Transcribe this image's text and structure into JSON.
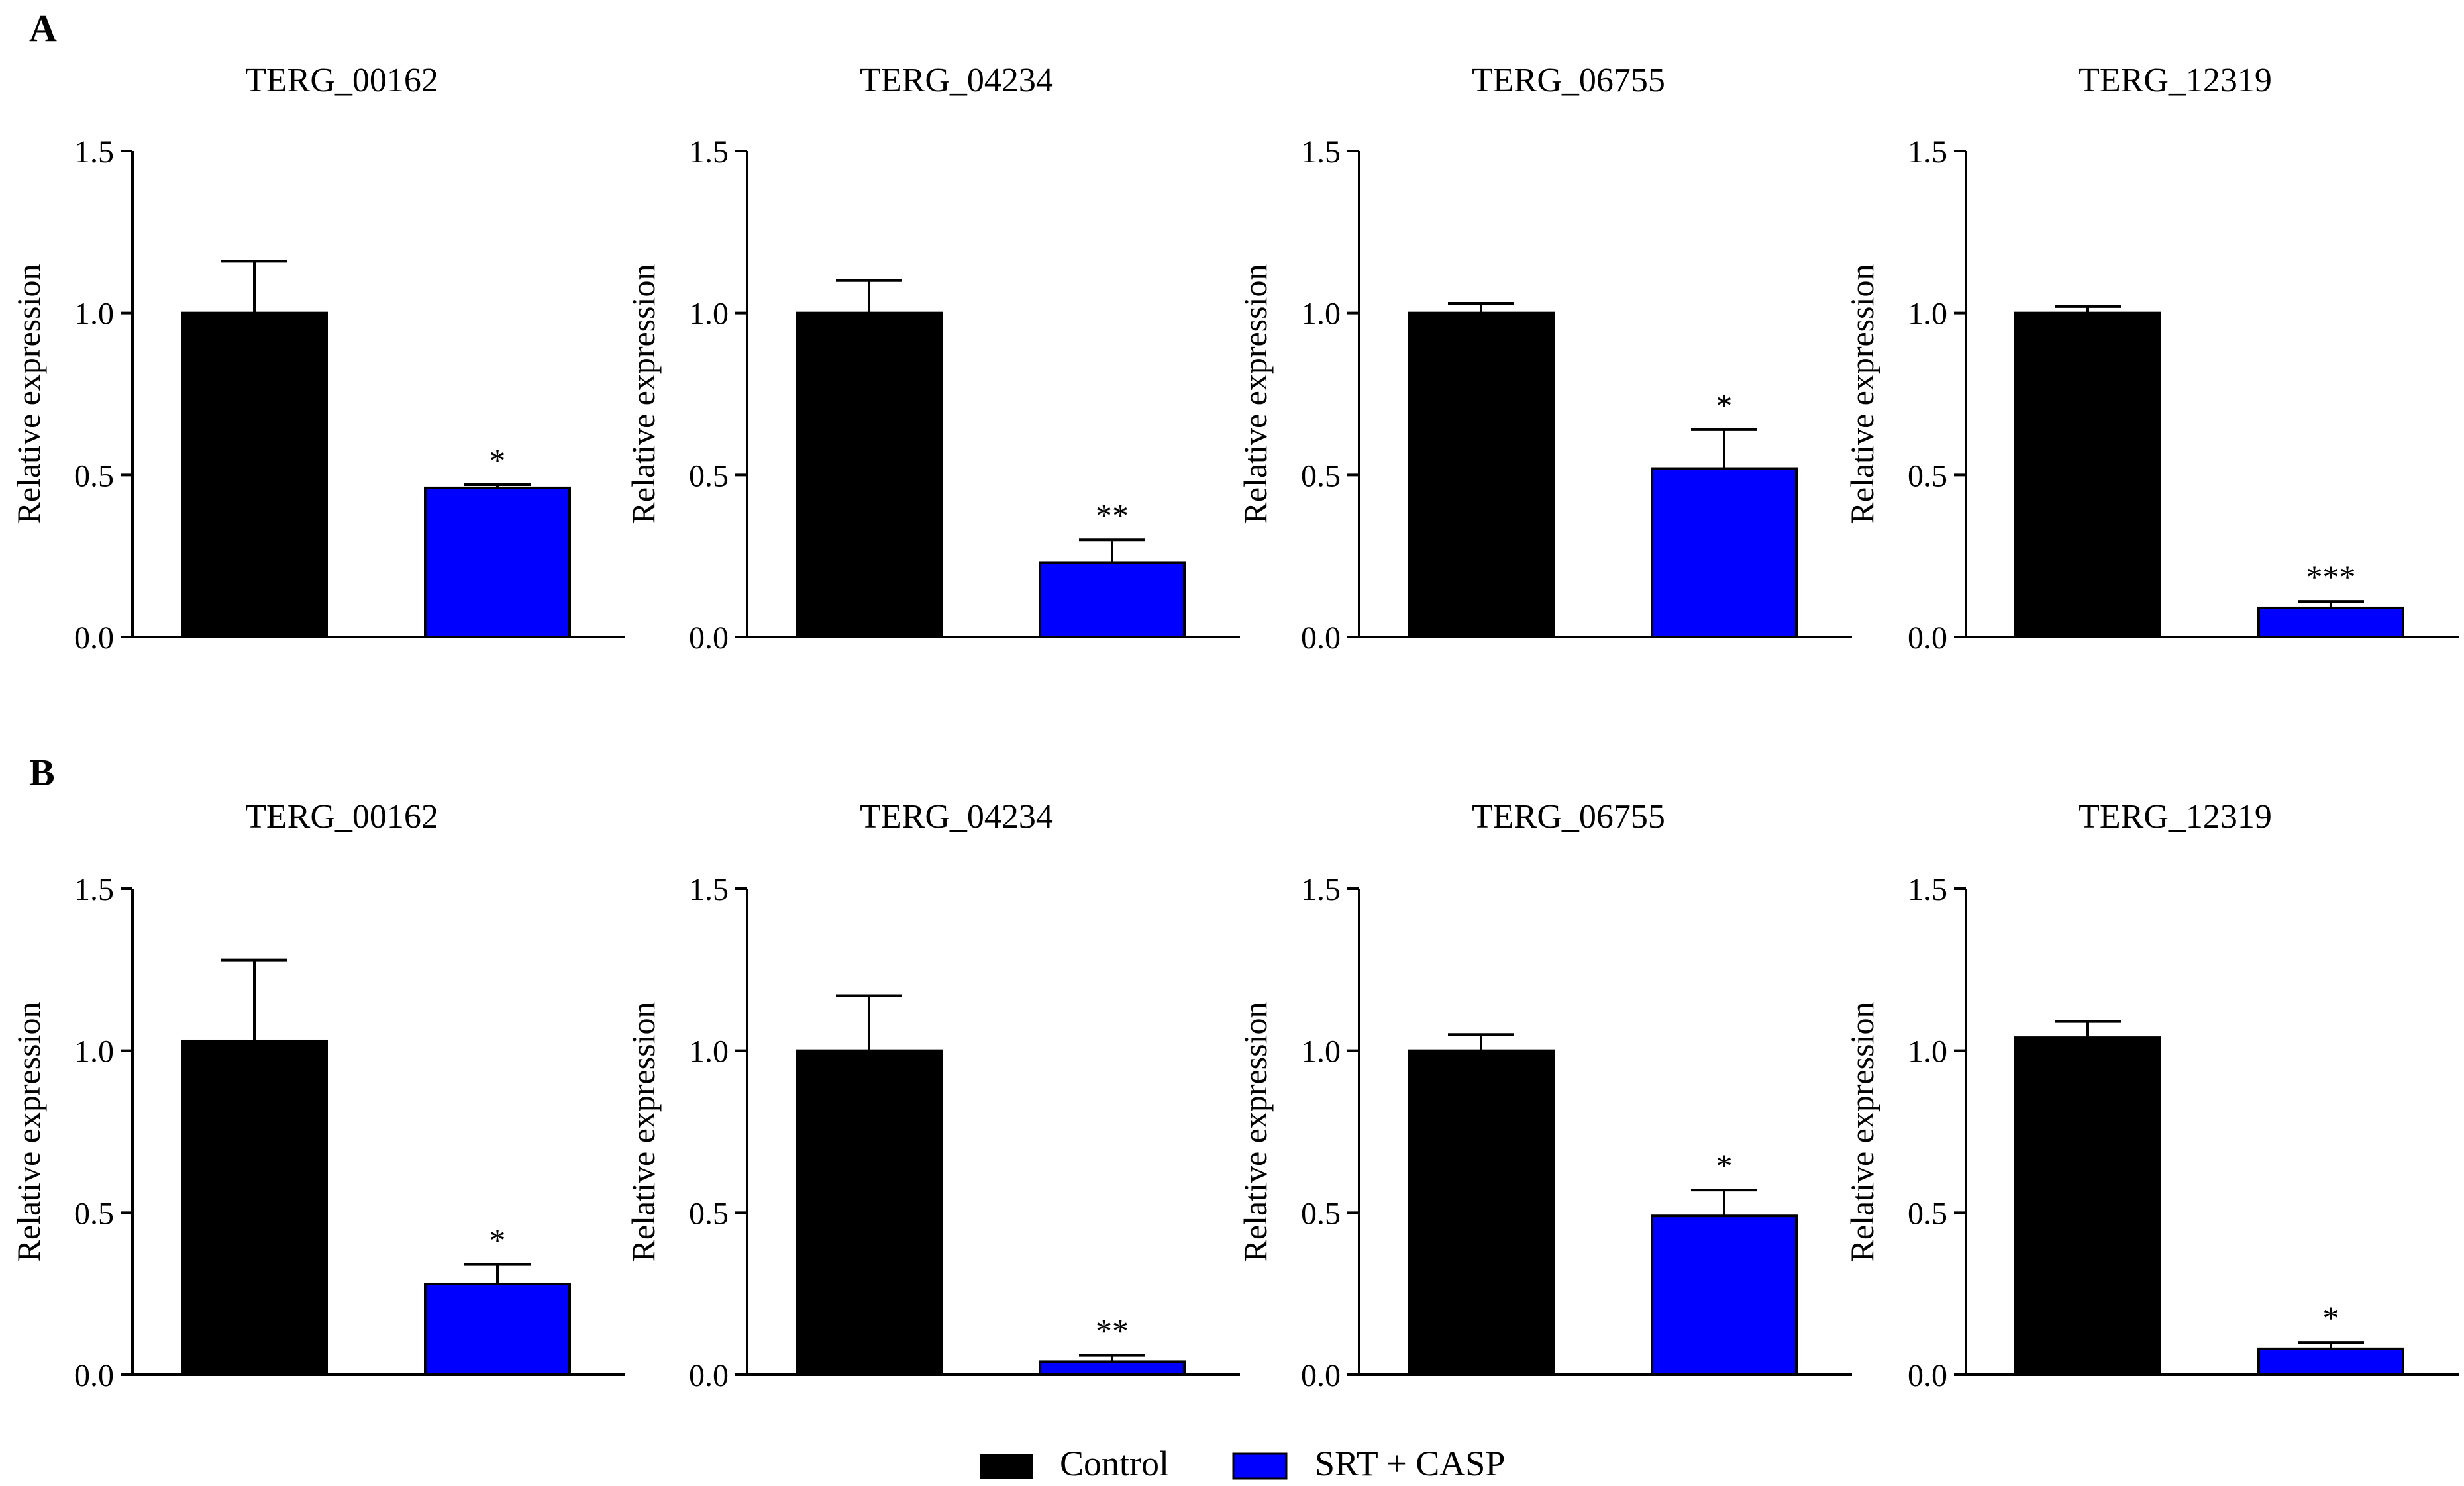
{
  "panels": [
    "A",
    "B"
  ],
  "legend": [
    {
      "label": "Control",
      "color": "#000000"
    },
    {
      "label": "SRT + CASP",
      "color": "#0000ff"
    }
  ],
  "colors": {
    "control": "#000000",
    "treatment": "#0000ff",
    "axis": "#000000"
  },
  "chart_data": [
    {
      "panel": "A",
      "type": "bar",
      "title": "TERG_00162",
      "ylabel": "Relative expression",
      "ylim": [
        0,
        1.5
      ],
      "yticks": [
        "0.0",
        "0.5",
        "1.0",
        "1.5"
      ],
      "series": [
        {
          "name": "Control",
          "value": 1.0,
          "error": 0.16,
          "sig": ""
        },
        {
          "name": "SRT + CASP",
          "value": 0.46,
          "error": 0.01,
          "sig": "*"
        }
      ]
    },
    {
      "panel": "A",
      "type": "bar",
      "title": "TERG_04234",
      "ylabel": "Relative expression",
      "ylim": [
        0,
        1.5
      ],
      "yticks": [
        "0.0",
        "0.5",
        "1.0",
        "1.5"
      ],
      "series": [
        {
          "name": "Control",
          "value": 1.0,
          "error": 0.1,
          "sig": ""
        },
        {
          "name": "SRT + CASP",
          "value": 0.23,
          "error": 0.07,
          "sig": "**"
        }
      ]
    },
    {
      "panel": "A",
      "type": "bar",
      "title": "TERG_06755",
      "ylabel": "Relative expression",
      "ylim": [
        0,
        1.5
      ],
      "yticks": [
        "0.0",
        "0.5",
        "1.0",
        "1.5"
      ],
      "series": [
        {
          "name": "Control",
          "value": 1.0,
          "error": 0.03,
          "sig": ""
        },
        {
          "name": "SRT + CASP",
          "value": 0.52,
          "error": 0.12,
          "sig": "*"
        }
      ]
    },
    {
      "panel": "A",
      "type": "bar",
      "title": "TERG_12319",
      "ylabel": "Relative expression",
      "ylim": [
        0,
        1.5
      ],
      "yticks": [
        "0.0",
        "0.5",
        "1.0",
        "1.5"
      ],
      "series": [
        {
          "name": "Control",
          "value": 1.0,
          "error": 0.02,
          "sig": ""
        },
        {
          "name": "SRT + CASP",
          "value": 0.09,
          "error": 0.02,
          "sig": "***"
        }
      ]
    },
    {
      "panel": "B",
      "type": "bar",
      "title": "TERG_00162",
      "ylabel": "Relative expression",
      "ylim": [
        0,
        1.5
      ],
      "yticks": [
        "0.0",
        "0.5",
        "1.0",
        "1.5"
      ],
      "series": [
        {
          "name": "Control",
          "value": 1.03,
          "error": 0.25,
          "sig": ""
        },
        {
          "name": "SRT + CASP",
          "value": 0.28,
          "error": 0.06,
          "sig": "*"
        }
      ]
    },
    {
      "panel": "B",
      "type": "bar",
      "title": "TERG_04234",
      "ylabel": "Relative expression",
      "ylim": [
        0,
        1.5
      ],
      "yticks": [
        "0.0",
        "0.5",
        "1.0",
        "1.5"
      ],
      "series": [
        {
          "name": "Control",
          "value": 1.0,
          "error": 0.17,
          "sig": ""
        },
        {
          "name": "SRT + CASP",
          "value": 0.04,
          "error": 0.02,
          "sig": "**"
        }
      ]
    },
    {
      "panel": "B",
      "type": "bar",
      "title": "TERG_06755",
      "ylabel": "Relative expression",
      "ylim": [
        0,
        1.5
      ],
      "yticks": [
        "0.0",
        "0.5",
        "1.0",
        "1.5"
      ],
      "series": [
        {
          "name": "Control",
          "value": 1.0,
          "error": 0.05,
          "sig": ""
        },
        {
          "name": "SRT + CASP",
          "value": 0.49,
          "error": 0.08,
          "sig": "*"
        }
      ]
    },
    {
      "panel": "B",
      "type": "bar",
      "title": "TERG_12319",
      "ylabel": "Relative expression",
      "ylim": [
        0,
        1.5
      ],
      "yticks": [
        "0.0",
        "0.5",
        "1.0",
        "1.5"
      ],
      "series": [
        {
          "name": "Control",
          "value": 1.04,
          "error": 0.05,
          "sig": ""
        },
        {
          "name": "SRT + CASP",
          "value": 0.08,
          "error": 0.02,
          "sig": "*"
        }
      ]
    }
  ]
}
